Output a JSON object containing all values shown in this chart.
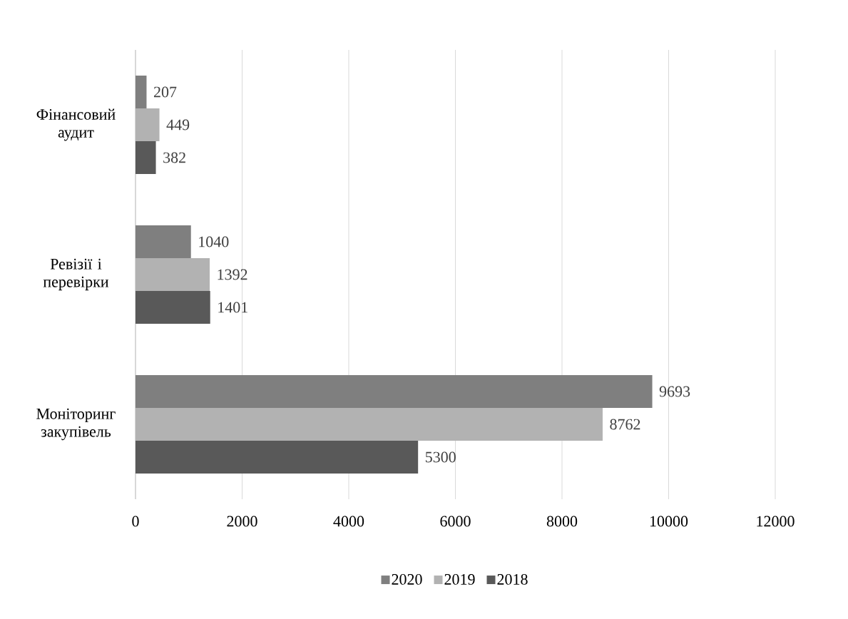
{
  "chart_data": {
    "type": "bar",
    "orientation": "horizontal",
    "categories": [
      "Фінансовий аудит",
      "Ревізії і перевірки",
      "Моніторинг закупівель"
    ],
    "series": [
      {
        "name": "2020",
        "color": "#7f7f7f",
        "values": [
          207,
          1040,
          9693
        ]
      },
      {
        "name": "2019",
        "color": "#b2b2b2",
        "values": [
          449,
          1392,
          8762
        ]
      },
      {
        "name": "2018",
        "color": "#595959",
        "values": [
          382,
          1401,
          5300
        ]
      }
    ],
    "xlim": [
      0,
      12000
    ],
    "xticks": [
      0,
      2000,
      4000,
      6000,
      8000,
      10000,
      12000
    ],
    "grid": "x",
    "legend": "bottom",
    "data_labels": true
  }
}
